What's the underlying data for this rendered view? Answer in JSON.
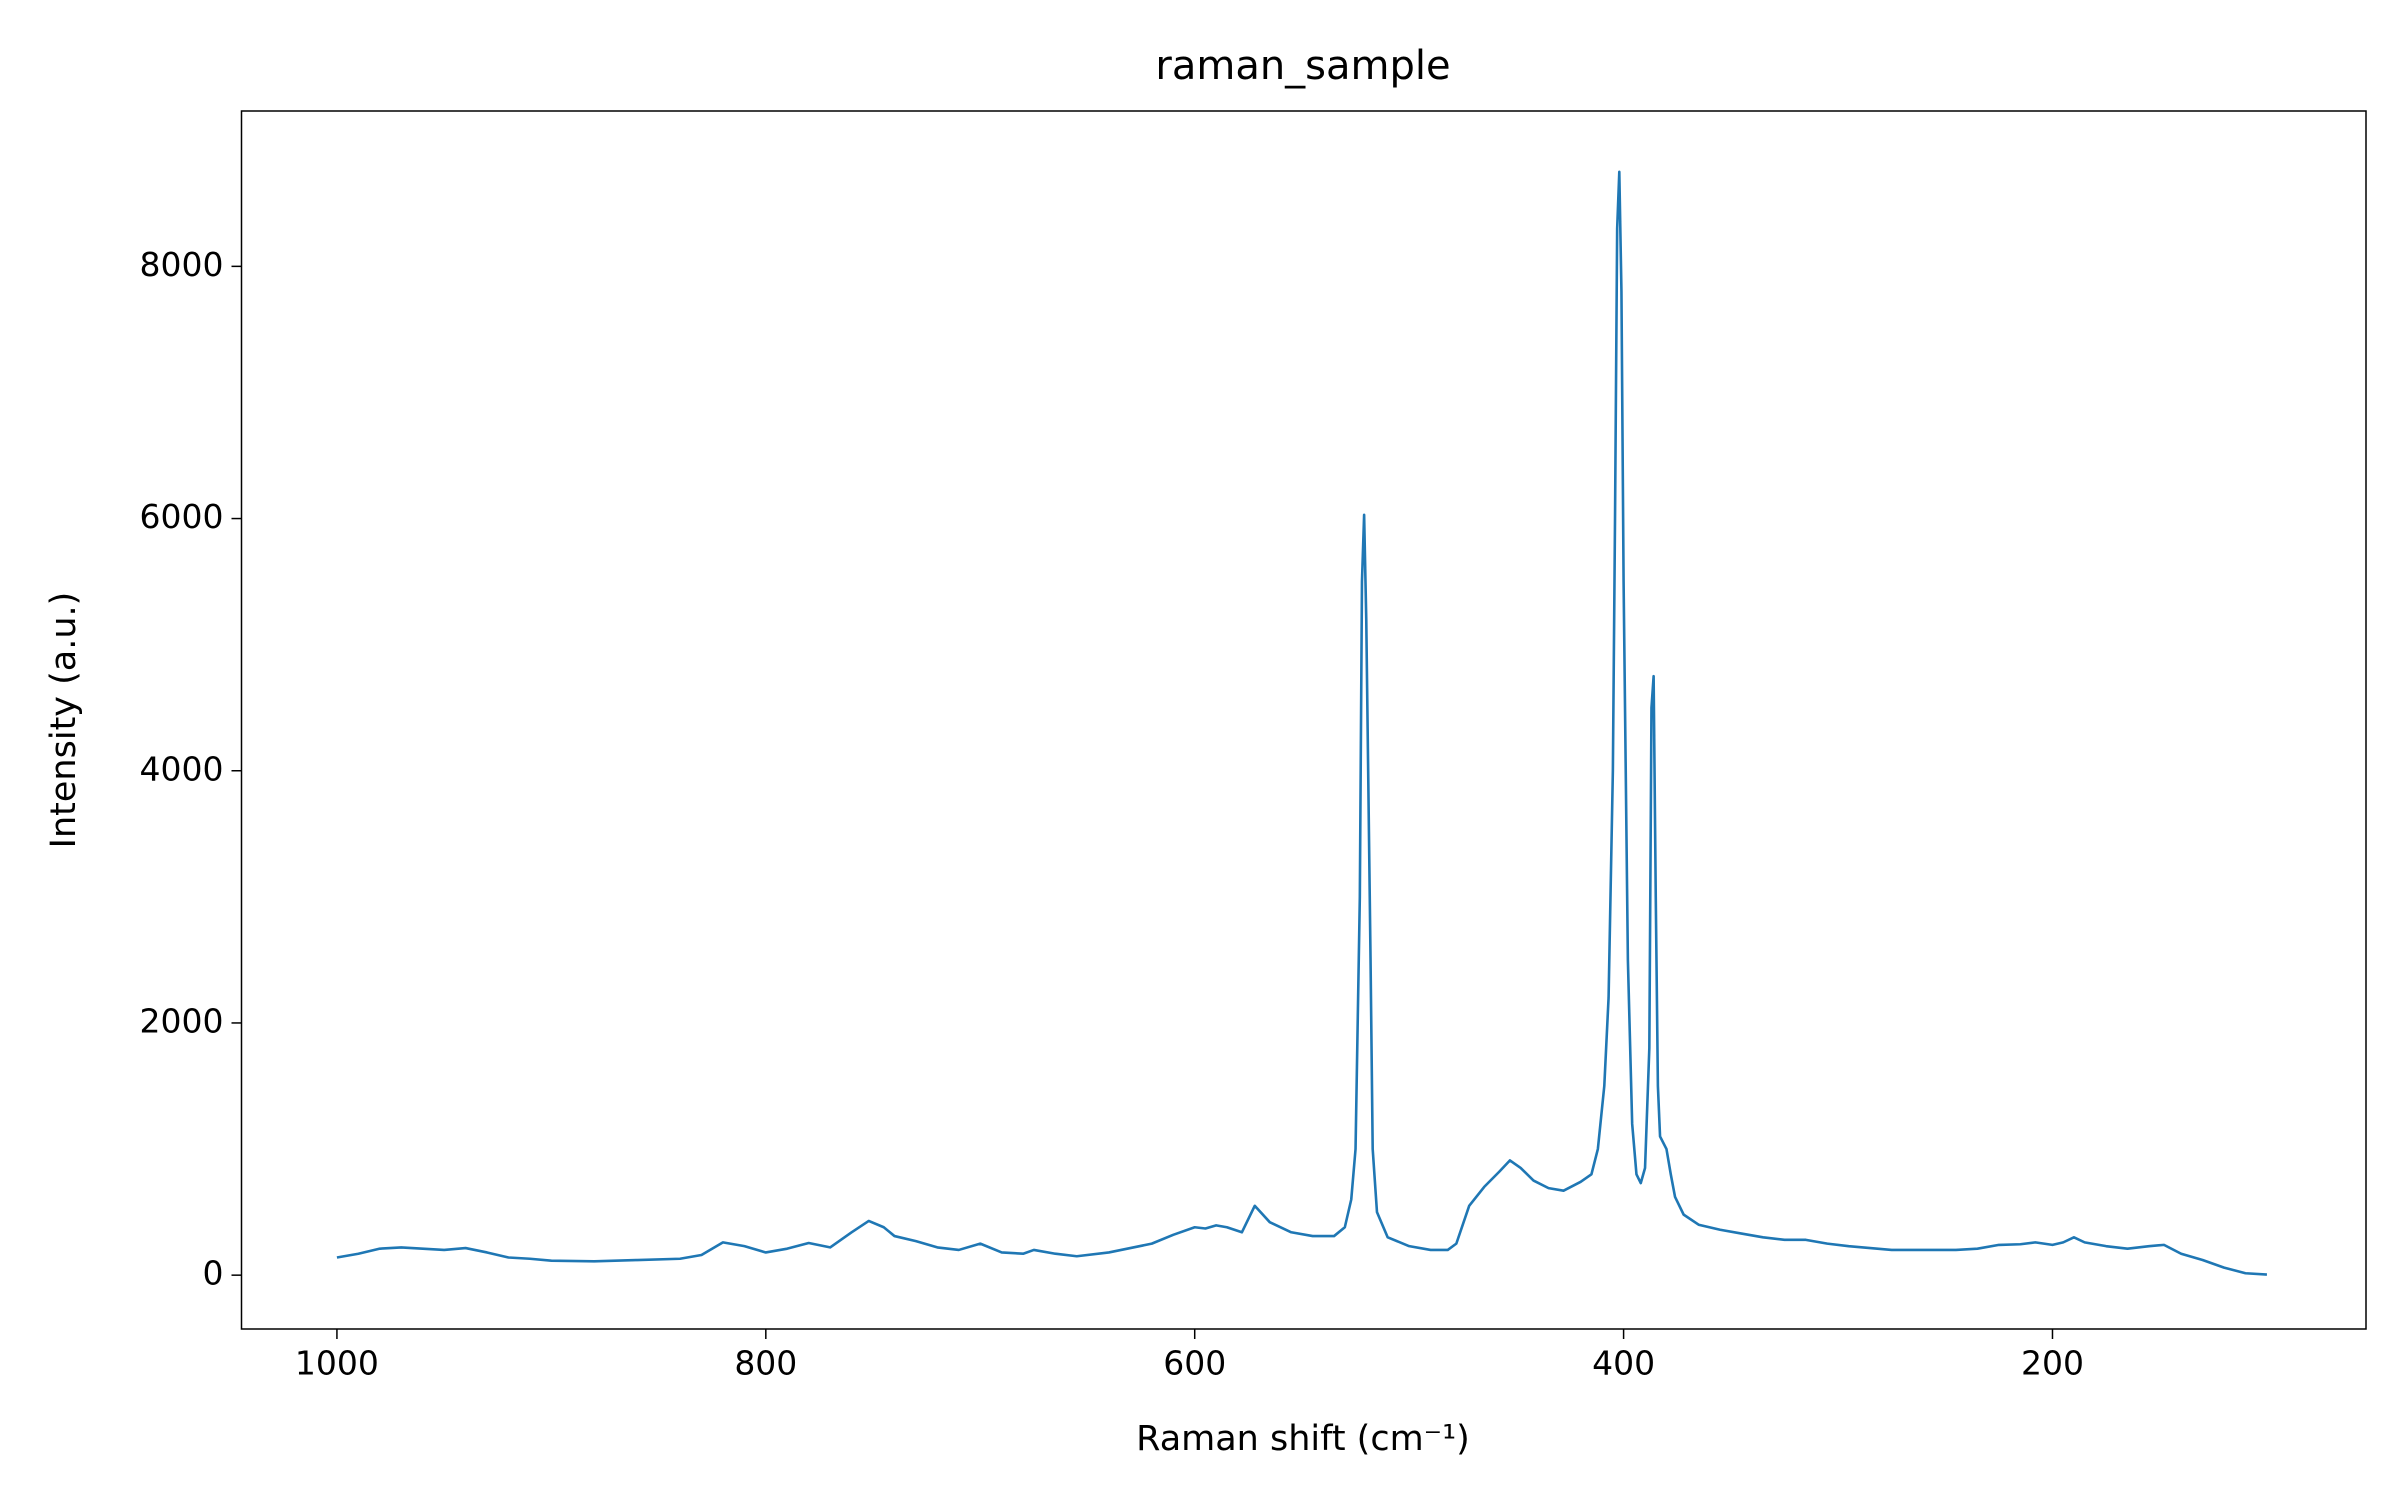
{
  "chart_data": {
    "type": "line",
    "title": "raman_sample",
    "x_label": "Raman shift (cm⁻¹)",
    "y_label": "Intensity (a.u.)",
    "x": [
      1000,
      990,
      980,
      970,
      960,
      950,
      940,
      930,
      920,
      910,
      900,
      880,
      860,
      840,
      830,
      820,
      810,
      800,
      790,
      780,
      770,
      760,
      752,
      745,
      740,
      730,
      720,
      710,
      700,
      690,
      680,
      675,
      665,
      655,
      640,
      620,
      610,
      600,
      595,
      590,
      585,
      578,
      572,
      565,
      555,
      545,
      535,
      530,
      527,
      525,
      523,
      522,
      521,
      520,
      518,
      517,
      515,
      510,
      500,
      490,
      482,
      478,
      472,
      465,
      458,
      453,
      448,
      442,
      435,
      428,
      420,
      415,
      412,
      409,
      407,
      405,
      404,
      403,
      402,
      401,
      400,
      398,
      396,
      394,
      392,
      390,
      388,
      387,
      386,
      385,
      384,
      383,
      380,
      378,
      376,
      372,
      365,
      355,
      345,
      335,
      325,
      315,
      305,
      295,
      285,
      275,
      260,
      245,
      235,
      225,
      215,
      208,
      200,
      195,
      190,
      185,
      175,
      165,
      155,
      148,
      140,
      130,
      120,
      110,
      100
    ],
    "values": [
      140,
      170,
      210,
      220,
      210,
      200,
      215,
      180,
      140,
      130,
      115,
      110,
      120,
      130,
      160,
      260,
      230,
      180,
      210,
      255,
      220,
      340,
      430,
      380,
      310,
      270,
      220,
      200,
      250,
      180,
      170,
      200,
      170,
      150,
      180,
      250,
      320,
      380,
      370,
      395,
      380,
      340,
      550,
      420,
      340,
      310,
      310,
      380,
      600,
      1000,
      3000,
      5500,
      6030,
      5200,
      2500,
      1000,
      500,
      300,
      230,
      200,
      200,
      250,
      550,
      700,
      820,
      910,
      850,
      750,
      690,
      670,
      740,
      800,
      1000,
      1500,
      2200,
      4000,
      6000,
      8300,
      8750,
      7800,
      5500,
      2500,
      1200,
      800,
      730,
      850,
      1800,
      4500,
      4750,
      3000,
      1500,
      1100,
      1000,
      800,
      620,
      480,
      400,
      360,
      330,
      300,
      280,
      280,
      250,
      230,
      215,
      200,
      200,
      200,
      210,
      240,
      245,
      260,
      240,
      260,
      300,
      260,
      230,
      210,
      230,
      240,
      170,
      120,
      60,
      15,
      5
    ],
    "color": "#1f77b4",
    "xlim": [
      1044.5,
      53.8
    ],
    "ylim": [
      -427,
      9232
    ],
    "xticks": [
      1000,
      800,
      600,
      400,
      200
    ],
    "yticks": [
      0,
      2000,
      4000,
      6000,
      8000
    ],
    "grid": false
  }
}
